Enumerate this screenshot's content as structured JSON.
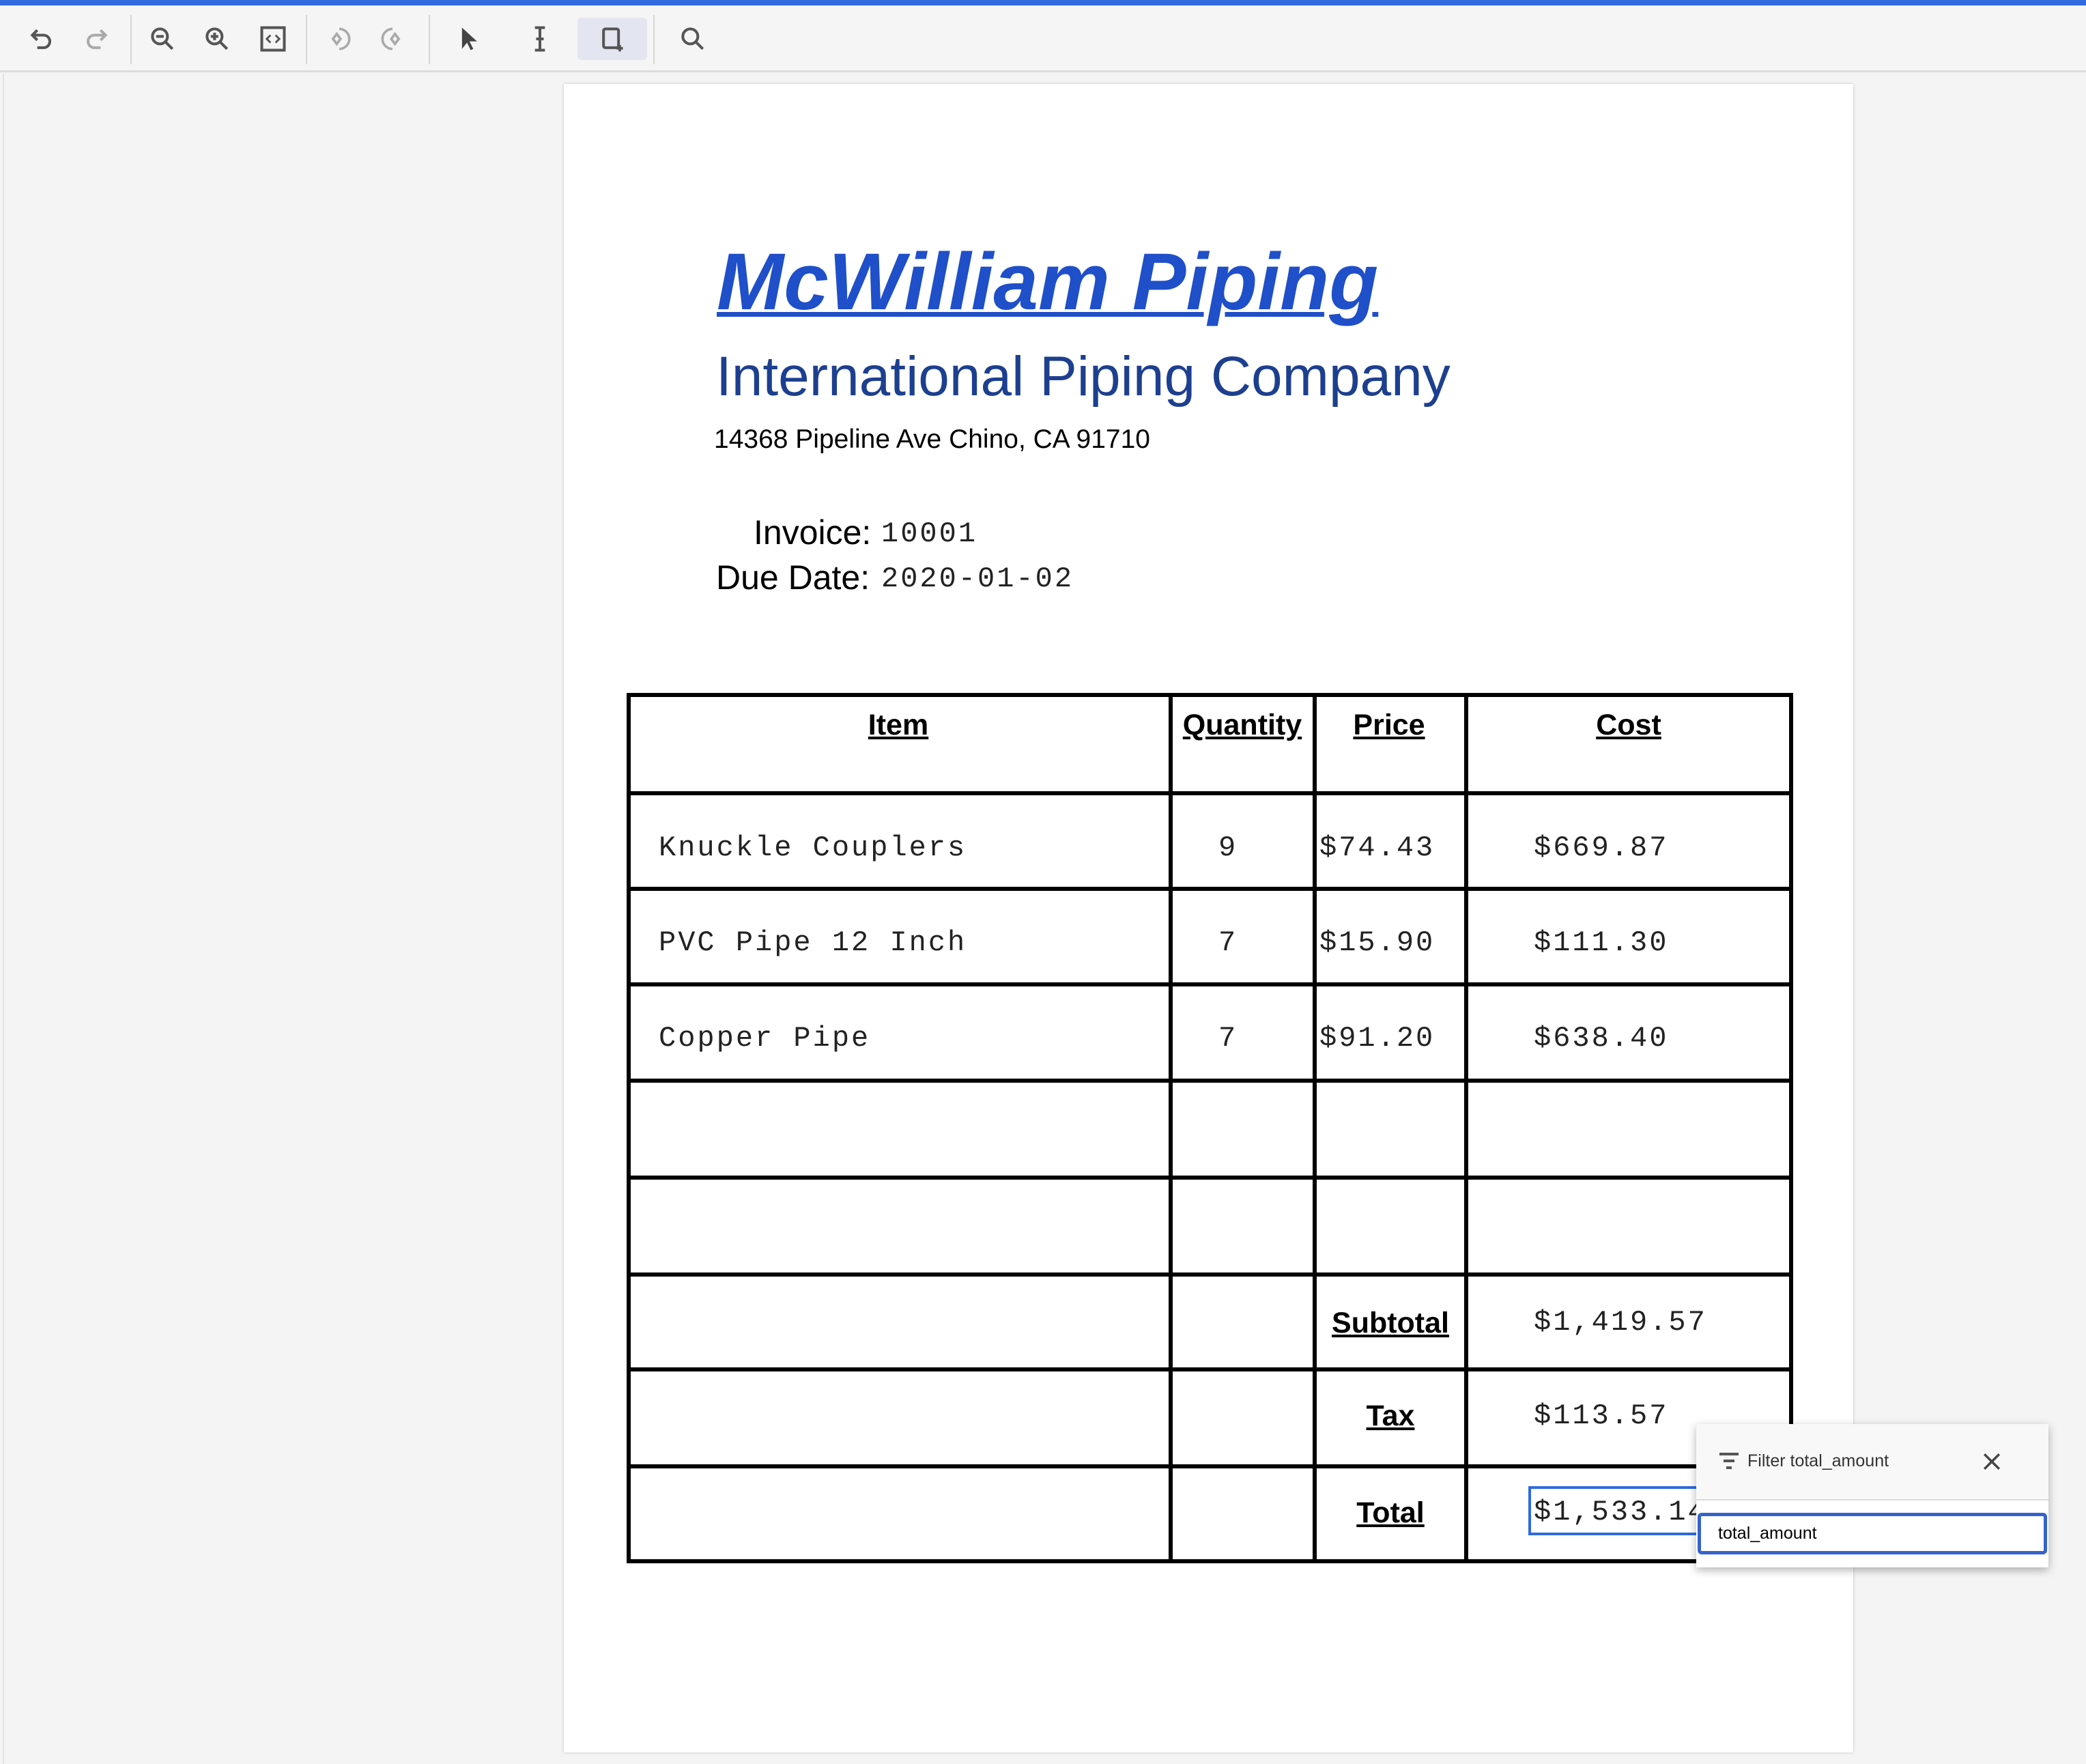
{
  "colors": {
    "accent": "#2f6bdc",
    "title": "#1f4fc9",
    "subtitle": "#1d3f8f"
  },
  "toolbar": {
    "buttons": [
      "undo-icon",
      "redo-icon",
      "zoom-out-icon",
      "zoom-in-icon",
      "fit-page-icon",
      "rotate-left-icon",
      "rotate-right-icon",
      "pointer-icon",
      "text-cursor-icon",
      "draw-region-icon",
      "search-icon"
    ],
    "active": "draw-region-icon"
  },
  "document": {
    "title": "McWilliam Piping",
    "subtitle": "International Piping Company",
    "address": "14368 Pipeline Ave Chino, CA 91710",
    "invoice_label": "Invoice:",
    "invoice_value": "10001",
    "due_label": "Due Date:",
    "due_value": "2020-01-02",
    "table": {
      "headers": [
        "Item",
        "Quantity",
        "Price",
        "Cost"
      ],
      "rows": [
        {
          "item": "Knuckle Couplers",
          "qty": "9",
          "price": "$74.43",
          "cost": "$669.87"
        },
        {
          "item": "PVC Pipe 12 Inch",
          "qty": "7",
          "price": "$15.90",
          "cost": "$111.30"
        },
        {
          "item": "Copper Pipe",
          "qty": "7",
          "price": "$91.20",
          "cost": "$638.40"
        }
      ],
      "subtotal_label": "Subtotal",
      "subtotal": "$1,419.57",
      "tax_label": "Tax",
      "tax": "$113.57",
      "total_label": "Total",
      "total": "$1,533.14"
    }
  },
  "popup": {
    "title": "Filter total_amount",
    "input_value": "total_amount"
  }
}
